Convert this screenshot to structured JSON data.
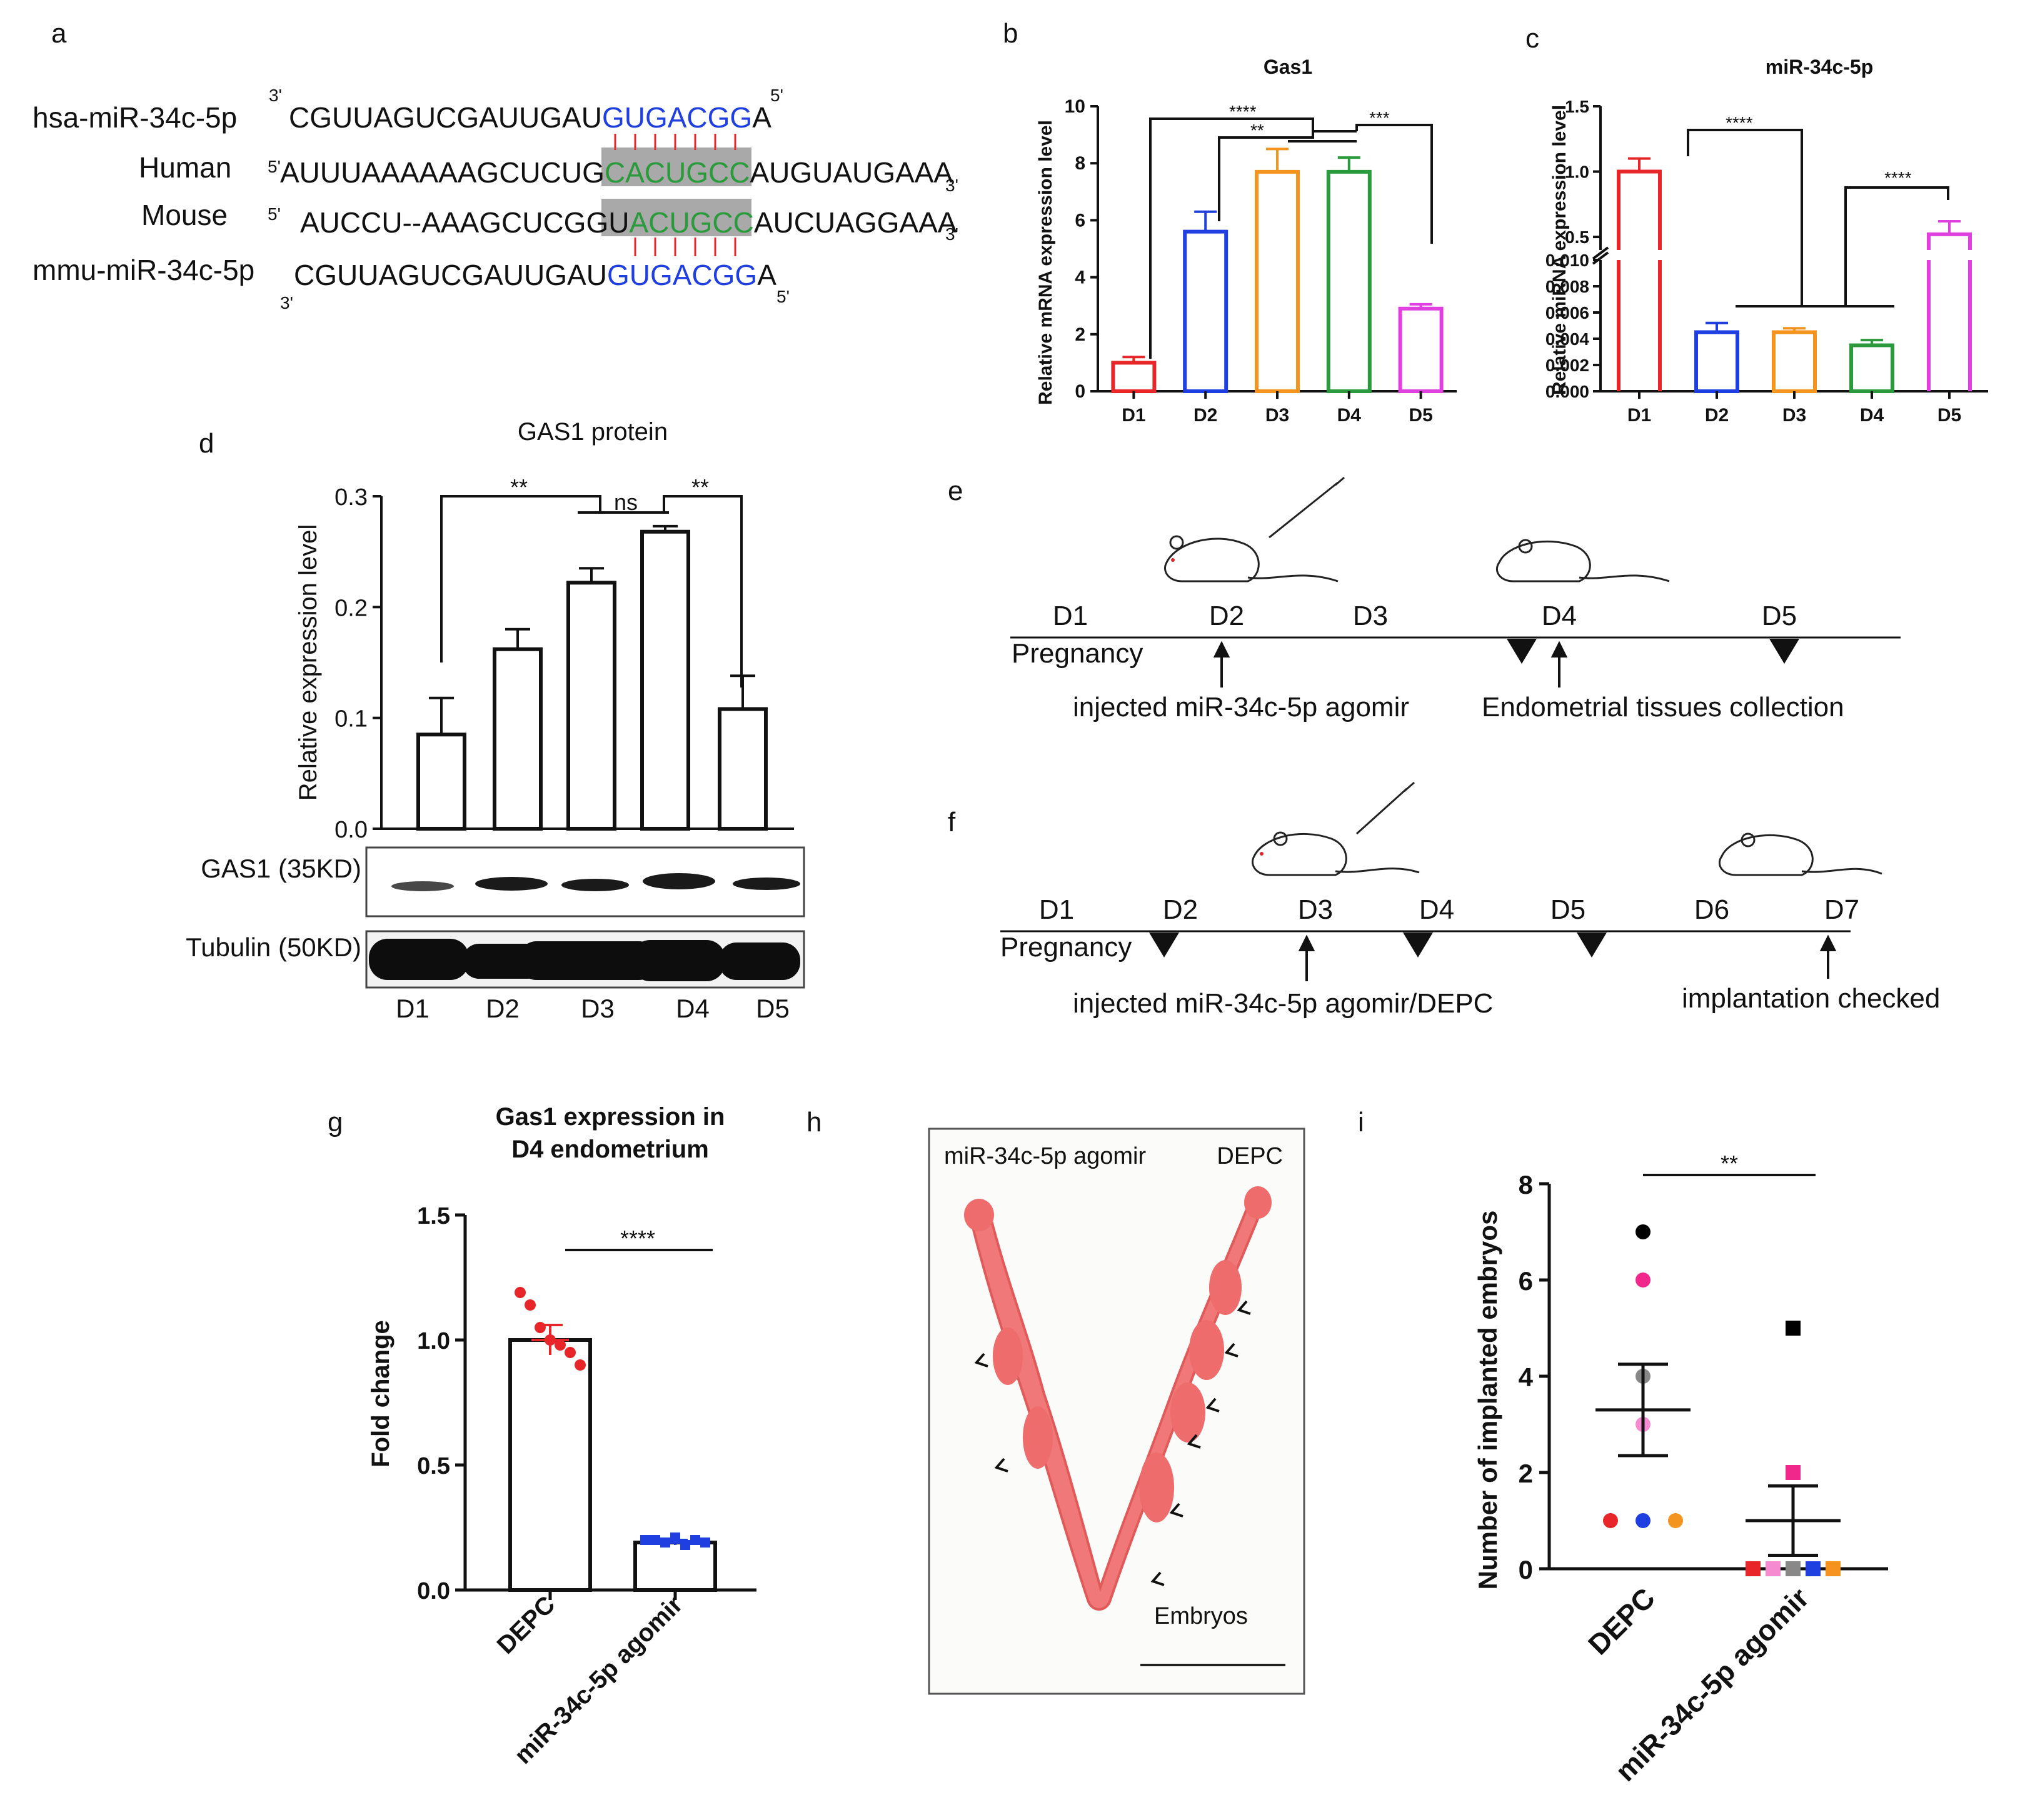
{
  "panel_labels": {
    "a": "a",
    "b": "b",
    "c": "c",
    "d": "d",
    "e": "e",
    "f": "f",
    "g": "g",
    "h": "h",
    "i": "i"
  },
  "panel_a": {
    "row1": {
      "label": "hsa-miR-34c-5p",
      "end_left": "3'",
      "seq_black": "CGUUAGUCGAUUGAU",
      "seq_seed": "GUGACGG",
      "seq_tail": "A",
      "end_right": "5'"
    },
    "row2": {
      "label": "Human",
      "end_left": "5'",
      "seq_black": "AUUUAAAAAAGCUCUG",
      "seq_site": "CACUGCC",
      "seq_tail": "AUGUAUGAAA",
      "end_right": "3'"
    },
    "row3": {
      "label": "Mouse",
      "end_left": "5'",
      "seq_black": "AUCCU--AAAGCUCGGU",
      "seq_site": "ACUGCC",
      "seq_tail": "AUCUAGGAAA",
      "end_right": "3'"
    },
    "row4": {
      "label": "mmu-miR-34c-5p",
      "end_left": "3'",
      "seq_black": "CGUUAGUCGAUUGAU",
      "seq_seed": "GUGACGG",
      "seq_tail": "A",
      "end_right": "5'"
    },
    "colors": {
      "seed": "#1f3fe0",
      "site": "#2a9a3c",
      "pair": "#e8262a",
      "highlight": "#a9a9a9"
    }
  },
  "chart_data": [
    {
      "panel": "b",
      "type": "bar",
      "title": "Gas1",
      "ylabel": "Relative mRNA expression level",
      "xlabel": "",
      "categories": [
        "D1",
        "D2",
        "D3",
        "D4",
        "D5"
      ],
      "values": [
        1.0,
        5.6,
        7.7,
        7.7,
        2.9
      ],
      "errors": [
        0.2,
        0.7,
        0.8,
        0.5,
        0.15
      ],
      "colors": [
        "#e8262a",
        "#1f3fe0",
        "#f5931f",
        "#2a9a3c",
        "#e040e0"
      ],
      "ylim": [
        0,
        10
      ],
      "yticks": [
        "0",
        "2",
        "4",
        "6",
        "8",
        "10"
      ],
      "significance": [
        {
          "label": "****"
        },
        {
          "label": "**"
        },
        {
          "label": "***"
        }
      ]
    },
    {
      "panel": "c",
      "type": "bar",
      "title": "miR-34c-5p",
      "ylabel": "Relative miRNA expression level",
      "xlabel": "",
      "categories": [
        "D1",
        "D2",
        "D3",
        "D4",
        "D5"
      ],
      "values": [
        1.0,
        0.0045,
        0.0045,
        0.0035,
        0.52
      ],
      "errors": [
        0.1,
        0.0007,
        0.0003,
        0.0004,
        0.1
      ],
      "colors": [
        "#e8262a",
        "#1f3fe0",
        "#f5931f",
        "#2a9a3c",
        "#e040e0"
      ],
      "yticks_lower": [
        "0.000",
        "0.002",
        "0.004",
        "0.006",
        "0.008",
        "0.010"
      ],
      "yticks_upper": [
        "0.5",
        "1.0",
        "1.5"
      ],
      "significance": [
        {
          "label": "****"
        },
        {
          "label": "****"
        }
      ]
    },
    {
      "panel": "d",
      "type": "bar",
      "title": "GAS1 protein",
      "ylabel": "Relative expression level",
      "xlabel": "",
      "categories": [
        "D1",
        "D2",
        "D3",
        "D4",
        "D5"
      ],
      "values": [
        0.085,
        0.162,
        0.222,
        0.268,
        0.108
      ],
      "errors": [
        0.033,
        0.018,
        0.013,
        0.005,
        0.03
      ],
      "ylim": [
        0,
        0.3
      ],
      "yticks": [
        "0.0",
        "0.1",
        "0.2",
        "0.3"
      ],
      "significance": [
        {
          "label": "**"
        },
        {
          "label": "ns"
        },
        {
          "label": "**"
        }
      ],
      "blot_labels": [
        "GAS1 (35KD)",
        "Tubulin (50KD)"
      ]
    },
    {
      "panel": "g",
      "type": "bar",
      "title_line1": "Gas1 expression in",
      "title_line2": "D4 endometrium",
      "ylabel": "Fold change",
      "xlabel": "",
      "categories": [
        "DEPC",
        "miR-34c-5p agomir"
      ],
      "values": [
        1.0,
        0.19
      ],
      "errors": [
        0.06,
        0.01
      ],
      "points": [
        [
          1.19,
          1.14,
          1.05,
          1.0,
          0.98,
          0.95,
          0.9
        ],
        [
          0.2,
          0.2,
          0.19,
          0.21,
          0.18,
          0.2,
          0.19
        ]
      ],
      "point_colors": [
        "#e8262a",
        "#1f3fe0"
      ],
      "ylim": [
        0,
        1.5
      ],
      "yticks": [
        "0.0",
        "0.5",
        "1.0",
        "1.5"
      ],
      "significance": [
        {
          "label": "****"
        }
      ]
    },
    {
      "panel": "i",
      "type": "scatter",
      "ylabel": "Number of implanted embryos",
      "xlabel": "",
      "categories": [
        "DEPC",
        "miR-34c-5p agomir"
      ],
      "points_depc": [
        {
          "v": 7,
          "c": "#000000"
        },
        {
          "v": 6,
          "c": "#f0288c"
        },
        {
          "v": 4,
          "c": "#888888"
        },
        {
          "v": 3,
          "c": "#f58ad0"
        },
        {
          "v": 1,
          "c": "#e8262a"
        },
        {
          "v": 1,
          "c": "#1f3fe0"
        },
        {
          "v": 1,
          "c": "#f5931f"
        }
      ],
      "points_agomir": [
        {
          "v": 5,
          "c": "#000000"
        },
        {
          "v": 2,
          "c": "#f0288c"
        },
        {
          "v": 0,
          "c": "#e8262a"
        },
        {
          "v": 0,
          "c": "#f58ad0"
        },
        {
          "v": 0,
          "c": "#888888"
        },
        {
          "v": 0,
          "c": "#1f3fe0"
        },
        {
          "v": 0,
          "c": "#f5931f"
        }
      ],
      "mean": [
        3.3,
        1.0
      ],
      "sem": [
        0.95,
        0.72
      ],
      "ylim": [
        0,
        8
      ],
      "yticks": [
        "0",
        "2",
        "4",
        "6",
        "8"
      ],
      "significance": [
        {
          "label": "**"
        }
      ]
    }
  ],
  "panel_e": {
    "days": [
      "D1",
      "D2",
      "D3",
      "D4",
      "D5"
    ],
    "pregnancy": "Pregnancy",
    "note1": "injected miR-34c-5p agomir",
    "note2": "Endometrial tissues collection"
  },
  "panel_f": {
    "days": [
      "D1",
      "D2",
      "D3",
      "D4",
      "D5",
      "D6",
      "D7"
    ],
    "pregnancy": "Pregnancy",
    "note1": "injected miR-34c-5p agomir/DEPC",
    "note2": "implantation checked"
  },
  "panel_h": {
    "left_label": "miR-34c-5p agomir",
    "right_label": "DEPC",
    "embryos": "Embryos"
  }
}
